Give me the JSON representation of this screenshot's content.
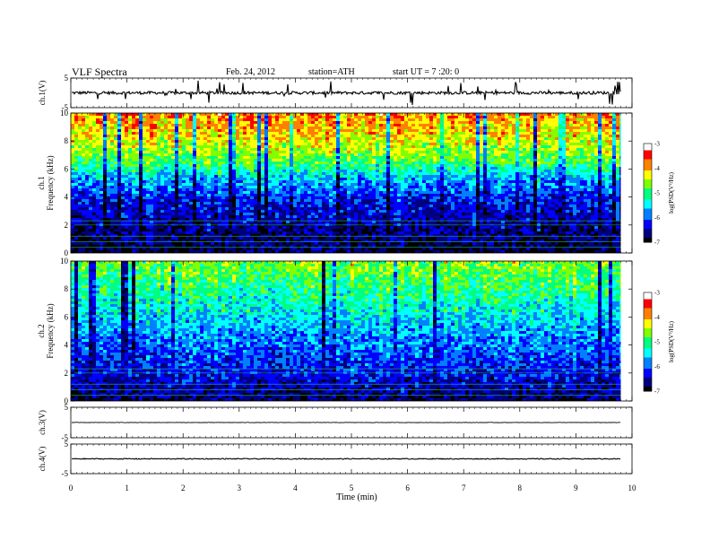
{
  "header": {
    "title": "VLF  Spectra",
    "date": "Feb. 24, 2012",
    "station": "station=ATH",
    "start": "start  UT  =   7  :20: 0"
  },
  "chart_data": [
    {
      "type": "line",
      "panel": "ch1-waveform",
      "ylabel": "ch.1(V)",
      "ylim": [
        -5,
        5
      ],
      "yticks": [
        "5",
        "-5"
      ],
      "baseline": 0,
      "noise_amplitude": 1.0,
      "color": "#000000"
    },
    {
      "type": "heatmap",
      "panel": "ch1-spectrogram",
      "ylabel": [
        "ch.1",
        "Frequency  (kHz)"
      ],
      "ylim": [
        0,
        10
      ],
      "yticks": [
        "10",
        "8",
        "6",
        "4",
        "2",
        "0"
      ],
      "colorbar": {
        "label": "log(PSD(V²/Hz)",
        "range": [
          -7,
          -3
        ],
        "ticks": [
          "-3",
          "-4",
          "-5",
          "-6",
          "-7"
        ],
        "colors": [
          "#000000",
          "#00007f",
          "#0000ff",
          "#0080ff",
          "#00ffff",
          "#00ff80",
          "#80ff00",
          "#ffff00",
          "#ff8000",
          "#ff0000",
          "#ffffff"
        ]
      },
      "intensity_profile_khz": [
        {
          "f": 0,
          "v": -6.9
        },
        {
          "f": 2,
          "v": -6.6
        },
        {
          "f": 4,
          "v": -6.2
        },
        {
          "f": 5.5,
          "v": -5.6
        },
        {
          "f": 6.5,
          "v": -4.9
        },
        {
          "f": 8,
          "v": -4.3
        },
        {
          "f": 10,
          "v": -3.8
        }
      ]
    },
    {
      "type": "heatmap",
      "panel": "ch2-spectrogram",
      "ylabel": [
        "ch.2",
        "Frequency  (kHz)"
      ],
      "ylim": [
        0,
        10
      ],
      "yticks": [
        "10",
        "8",
        "6",
        "4",
        "2",
        "0"
      ],
      "colorbar": {
        "label": "log(PSD(V²/Hz)",
        "range": [
          -7,
          -3
        ],
        "ticks": [
          "-3",
          "-4",
          "-5",
          "-6",
          "-7"
        ],
        "colors": [
          "#000000",
          "#00007f",
          "#0000ff",
          "#0080ff",
          "#00ffff",
          "#00ff80",
          "#80ff00",
          "#ffff00",
          "#ff8000",
          "#ff0000",
          "#ffffff"
        ]
      },
      "intensity_profile_khz": [
        {
          "f": 0,
          "v": -6.8
        },
        {
          "f": 2,
          "v": -6.3
        },
        {
          "f": 4,
          "v": -5.9
        },
        {
          "f": 6,
          "v": -5.5
        },
        {
          "f": 8,
          "v": -5.0
        },
        {
          "f": 10,
          "v": -4.6
        }
      ]
    },
    {
      "type": "line",
      "panel": "ch3-waveform",
      "ylabel": "ch.3(V)",
      "ylim": [
        -5,
        5
      ],
      "yticks": [
        "5",
        "-5"
      ],
      "baseline": 0,
      "noise_amplitude": 0.15,
      "color": "#000000"
    },
    {
      "type": "line",
      "panel": "ch4-waveform",
      "ylabel": "ch.4(V)",
      "ylim": [
        -5,
        5
      ],
      "yticks": [
        "5",
        "-5"
      ],
      "baseline": 0,
      "noise_amplitude": 0.3,
      "color": "#000000"
    }
  ],
  "xaxis": {
    "label": "Time  (min)",
    "range": [
      0,
      10
    ],
    "data_end": 9.8,
    "ticks": [
      "0",
      "1",
      "2",
      "3",
      "4",
      "5",
      "6",
      "7",
      "8",
      "9",
      "10"
    ]
  }
}
